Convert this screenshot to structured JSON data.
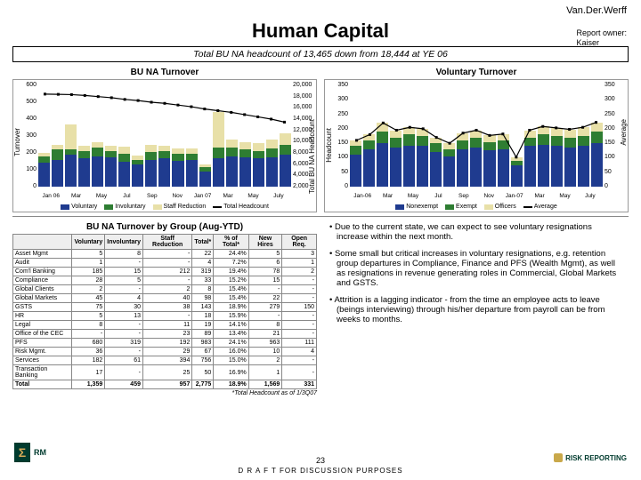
{
  "corp": "Van.Der.Werff",
  "report_owner_label": "Report owner:",
  "report_owner": "Kaiser",
  "title": "Human Capital",
  "band": "Total BU NA headcount of 13,465 down from 18,444 at YE 06",
  "chartA": {
    "title": "BU NA Turnover",
    "ylabel_left": "Turnover",
    "ylabel_right": "Total BU NA Headcount",
    "yticks_left": [
      0,
      100,
      200,
      300,
      400,
      500,
      600
    ],
    "yticks_right": [
      2000,
      4000,
      6000,
      8000,
      10000,
      12000,
      14000,
      16000,
      18000,
      20000
    ],
    "x": [
      "Jan 06",
      "Mar",
      "May",
      "Jul",
      "Sep",
      "Nov",
      "Jan 07",
      "Mar",
      "May",
      "July"
    ],
    "series": {
      "voluntary": [
        140,
        160,
        190,
        170,
        180,
        175,
        150,
        130,
        160,
        170,
        155,
        160,
        90,
        170,
        180,
        175,
        170,
        175,
        190
      ],
      "involuntary": [
        40,
        60,
        30,
        40,
        50,
        35,
        45,
        30,
        45,
        40,
        40,
        35,
        25,
        60,
        50,
        45,
        40,
        50,
        55
      ],
      "staff_red": [
        20,
        25,
        150,
        30,
        35,
        30,
        40,
        25,
        40,
        30,
        30,
        30,
        15,
        210,
        50,
        45,
        50,
        55,
        70
      ]
    },
    "headcount_line": [
      18444,
      18400,
      18350,
      18200,
      18000,
      17800,
      17500,
      17300,
      17000,
      16800,
      16500,
      16200,
      15800,
      15500,
      15200,
      14800,
      14400,
      14000,
      13465
    ],
    "colors": {
      "voluntary": "#1f3b8f",
      "involuntary": "#2e7d32",
      "staff_red": "#e8e0a8",
      "line": "#000"
    },
    "legend": [
      "Voluntary",
      "Involuntary",
      "Staff Reduction",
      "Total Headcount"
    ]
  },
  "chartB": {
    "title": "Voluntary Turnover",
    "ylabel_left": "Headcount",
    "ylabel_right": "Average",
    "yticks_left": [
      0,
      50,
      100,
      150,
      200,
      250,
      300,
      350
    ],
    "yticks_right": [
      0,
      50,
      100,
      150,
      200,
      250,
      300,
      350
    ],
    "x": [
      "Jan-06",
      "Mar",
      "May",
      "Jul",
      "Sep",
      "Nov",
      "Jan-07",
      "Mar",
      "May",
      "July"
    ],
    "series": {
      "nonexempt": [
        110,
        130,
        150,
        135,
        140,
        140,
        120,
        105,
        130,
        135,
        125,
        130,
        75,
        140,
        145,
        140,
        135,
        140,
        150
      ],
      "exempt": [
        30,
        30,
        40,
        35,
        40,
        35,
        30,
        25,
        30,
        35,
        30,
        30,
        15,
        30,
        35,
        35,
        35,
        35,
        40
      ],
      "officers": [
        20,
        20,
        30,
        25,
        25,
        25,
        20,
        20,
        25,
        25,
        22,
        22,
        12,
        25,
        28,
        28,
        28,
        30,
        32
      ]
    },
    "avg_line": [
      160,
      180,
      220,
      195,
      205,
      200,
      170,
      150,
      185,
      195,
      177,
      182,
      102,
      195,
      208,
      203,
      198,
      205,
      222
    ],
    "colors": {
      "nonexempt": "#1f3b8f",
      "exempt": "#2e7d32",
      "officers": "#e8e0a8",
      "line": "#000"
    },
    "legend": [
      "Nonexempt",
      "Exempt",
      "Officers",
      "Average"
    ]
  },
  "table": {
    "title": "BU NA Turnover by Group (Aug-YTD)",
    "columns": [
      "",
      "Voluntary",
      "Involuntary",
      "Staff Reduction",
      "Total*",
      "% of Total*",
      "New Hires",
      "Open Req."
    ],
    "rows": [
      [
        "Asset Mgmt",
        "5",
        "8",
        "-",
        "22",
        "24.4%",
        "5",
        "3"
      ],
      [
        "Audit",
        "1",
        "-",
        "-",
        "4",
        "7.2%",
        "6",
        "1"
      ],
      [
        "Com'l Banking",
        "185",
        "15",
        "212",
        "319",
        "19.4%",
        "78",
        "2"
      ],
      [
        "Compliance",
        "28",
        "5",
        "-",
        "33",
        "15.2%",
        "15",
        "-"
      ],
      [
        "Global Clients",
        "2",
        "-",
        "2",
        "8",
        "15.4%",
        "-",
        "-"
      ],
      [
        "Global Markets",
        "45",
        "4",
        "40",
        "98",
        "15.4%",
        "22",
        "-"
      ],
      [
        "GSTS",
        "75",
        "30",
        "38",
        "143",
        "18.9%",
        "279",
        "150"
      ],
      [
        "HR",
        "5",
        "13",
        "-",
        "18",
        "15.9%",
        "-",
        "-"
      ],
      [
        "Legal",
        "8",
        "-",
        "11",
        "19",
        "14.1%",
        "8",
        "-"
      ],
      [
        "Office of the CEC",
        "-",
        "-",
        "23",
        "89",
        "13.4%",
        "21",
        "-"
      ],
      [
        "PFS",
        "680",
        "319",
        "192",
        "983",
        "24.1%",
        "963",
        "111"
      ],
      [
        "Risk Mgmt.",
        "36",
        "-",
        "29",
        "67",
        "16.0%",
        "10",
        "4"
      ],
      [
        "Services",
        "182",
        "61",
        "394",
        "756",
        "15.0%",
        "2",
        "-"
      ],
      [
        "Transaction Banking",
        "17",
        "-",
        "25",
        "50",
        "16.9%",
        "1",
        "-"
      ],
      [
        "Total",
        "1,359",
        "459",
        "957",
        "2,775",
        "18.9%",
        "1,569",
        "331"
      ]
    ],
    "footnote": "*Total Headcount as of 1/3Q07"
  },
  "bullets": [
    "Due to the current state, we can expect to see voluntary resignations increase within the next month.",
    "Some small but critical increases in voluntary resignations, e.g. retention group departures in Compliance, Finance and PFS (Wealth Mgmt), as well as resignations in revenue generating roles in Commercial, Global Markets and GSTS.",
    "Attrition is a lagging indicator - from the time an employee acts to leave (beings interviewing) through his/her departure from payroll can be from weeks to months."
  ],
  "footer": {
    "page": "23",
    "draft": "D R A F T  FOR DISCUSSION PURPOSES",
    "logoL": "RM",
    "logoR": "RISK REPORTING"
  }
}
